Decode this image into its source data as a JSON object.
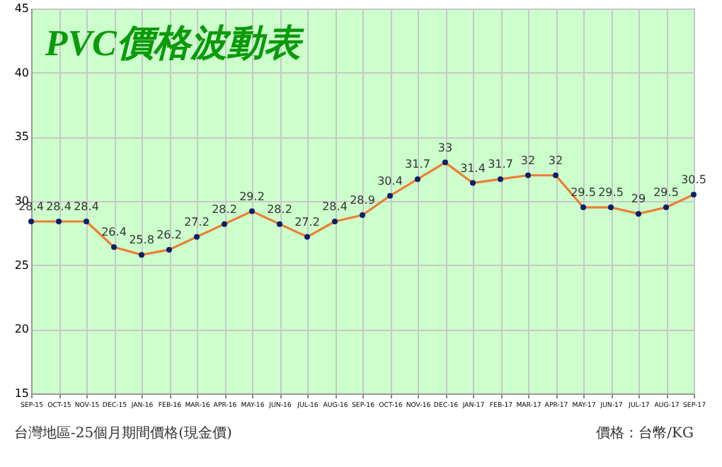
{
  "chart_data": {
    "type": "line",
    "title": "PVC價格波動表",
    "categories": [
      "SEP-15",
      "OCT-15",
      "NOV-15",
      "DEC-15",
      "JAN-16",
      "FEB-16",
      "MAR-16",
      "APR-16",
      "MAY-16",
      "JUN-16",
      "JUL-16",
      "AUG-16",
      "SEP-16",
      "OCT-16",
      "NOV-16",
      "DEC-16",
      "JAN-17",
      "FEB-17",
      "MAR-17",
      "APR-17",
      "MAY-17",
      "JUN-17",
      "JUL-17",
      "AUG-17",
      "SEP-17"
    ],
    "series": [
      {
        "color": "#ed7d31",
        "values": [
          28.4,
          28.4,
          28.4,
          26.4,
          25.8,
          26.2,
          27.2,
          28.2,
          29.2,
          28.2,
          27.2,
          28.4,
          28.9,
          30.4,
          31.7,
          33,
          31.4,
          31.7,
          32,
          32,
          29.5,
          29.5,
          29,
          29.5,
          30.5
        ]
      }
    ],
    "ylim": [
      15,
      45
    ],
    "yticks": [
      15,
      20,
      25,
      30,
      35,
      40,
      45
    ],
    "grid": true,
    "marker": "circle",
    "data_labels": true,
    "annotations": [
      "台灣地區-25個月期間價格(現金價)",
      "價格：台幣/KG"
    ]
  }
}
